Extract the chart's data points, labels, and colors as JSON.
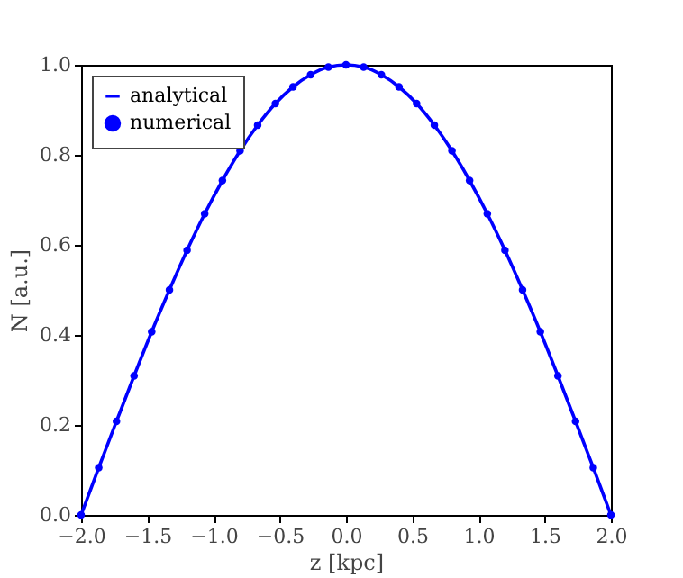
{
  "chart_data": {
    "type": "line",
    "xlabel": "z [kpc]",
    "ylabel": "N [a.u.]",
    "x": [
      -2,
      -1.867,
      -1.733,
      -1.6,
      -1.467,
      -1.333,
      -1.2,
      -1.067,
      -0.933,
      -0.8,
      -0.667,
      -0.533,
      -0.4,
      -0.267,
      -0.133,
      0,
      0.133,
      0.267,
      0.4,
      0.533,
      0.667,
      0.8,
      0.933,
      1.067,
      1.2,
      1.333,
      1.467,
      1.6,
      1.733,
      1.867,
      2
    ],
    "series": [
      {
        "name": "analytical",
        "type": "line",
        "color": "#0000ff",
        "values": [
          0,
          0.105,
          0.208,
          0.309,
          0.407,
          0.5,
          0.588,
          0.669,
          0.743,
          0.809,
          0.866,
          0.914,
          0.951,
          0.978,
          0.995,
          1,
          0.995,
          0.978,
          0.951,
          0.914,
          0.866,
          0.809,
          0.743,
          0.669,
          0.588,
          0.5,
          0.407,
          0.309,
          0.208,
          0.105,
          0
        ]
      },
      {
        "name": "numerical",
        "type": "scatter",
        "color": "#0000ff",
        "marker": "circle",
        "values": [
          0,
          0.105,
          0.208,
          0.309,
          0.407,
          0.5,
          0.588,
          0.669,
          0.743,
          0.809,
          0.866,
          0.914,
          0.951,
          0.978,
          0.995,
          1,
          0.995,
          0.978,
          0.951,
          0.914,
          0.866,
          0.809,
          0.743,
          0.669,
          0.588,
          0.5,
          0.407,
          0.309,
          0.208,
          0.105,
          0
        ]
      }
    ],
    "xlim": [
      -2,
      2
    ],
    "ylim": [
      0,
      1
    ],
    "xticks": [
      {
        "value": -2,
        "label": "−2.0"
      },
      {
        "value": -1.5,
        "label": "−1.5"
      },
      {
        "value": -1,
        "label": "−1.0"
      },
      {
        "value": -0.5,
        "label": "−0.5"
      },
      {
        "value": 0,
        "label": "0.0"
      },
      {
        "value": 0.5,
        "label": "0.5"
      },
      {
        "value": 1,
        "label": "1.0"
      },
      {
        "value": 1.5,
        "label": "1.5"
      },
      {
        "value": 2,
        "label": "2.0"
      }
    ],
    "yticks": [
      {
        "value": 0,
        "label": "0.0"
      },
      {
        "value": 0.2,
        "label": "0.2"
      },
      {
        "value": 0.4,
        "label": "0.4"
      },
      {
        "value": 0.6,
        "label": "0.6"
      },
      {
        "value": 0.8,
        "label": "0.8"
      },
      {
        "value": 1,
        "label": "1.0"
      }
    ],
    "legend": "top left",
    "grid": false
  }
}
